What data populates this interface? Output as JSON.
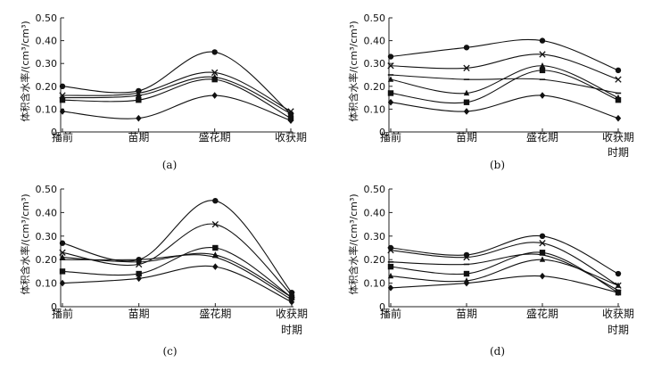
{
  "figure": {
    "ylabel": "体积含水率/(cm³/cm³)",
    "xlabel": "时期"
  },
  "chart_data": [
    {
      "type": "line",
      "panel_label": "(a)",
      "categories": [
        "播前",
        "苗期",
        "盛花期",
        "收获期"
      ],
      "ylim": [
        0,
        0.5
      ],
      "yticks": [
        "0",
        "0.10",
        "0.20",
        "0.30",
        "0.40",
        "0.50"
      ],
      "xlabel": "",
      "ylabel": "体积含水率/(cm³/cm³)",
      "series": [
        {
          "marker": "circle",
          "values": [
            0.2,
            0.18,
            0.35,
            0.08
          ]
        },
        {
          "marker": "cross",
          "values": [
            0.16,
            0.17,
            0.26,
            0.09
          ]
        },
        {
          "marker": "triangle",
          "values": [
            0.15,
            0.16,
            0.24,
            0.08
          ]
        },
        {
          "marker": "square",
          "values": [
            0.14,
            0.14,
            0.23,
            0.06
          ]
        },
        {
          "marker": "diamond",
          "values": [
            0.09,
            0.06,
            0.16,
            0.05
          ]
        }
      ]
    },
    {
      "type": "line",
      "panel_label": "(b)",
      "categories": [
        "播前",
        "苗期",
        "盛花期",
        "收获期"
      ],
      "ylim": [
        0,
        0.5
      ],
      "yticks": [
        "0",
        "0.10",
        "0.20",
        "0.30",
        "0.40",
        "0.50"
      ],
      "xlabel": "时期",
      "ylabel": "体积含水率/(cm³/cm³)",
      "series": [
        {
          "marker": "circle",
          "values": [
            0.33,
            0.37,
            0.4,
            0.27
          ]
        },
        {
          "marker": "cross",
          "values": [
            0.29,
            0.28,
            0.34,
            0.23
          ]
        },
        {
          "marker": "triangle",
          "values": [
            0.23,
            0.17,
            0.29,
            0.15
          ]
        },
        {
          "marker": "square",
          "values": [
            0.17,
            0.13,
            0.27,
            0.14
          ]
        },
        {
          "marker": "diamond",
          "values": [
            0.13,
            0.09,
            0.16,
            0.06
          ]
        },
        {
          "marker": "dash",
          "values": [
            0.25,
            0.23,
            0.23,
            0.17
          ]
        }
      ]
    },
    {
      "type": "line",
      "panel_label": "(c)",
      "categories": [
        "播前",
        "苗期",
        "盛花期",
        "收获期"
      ],
      "ylim": [
        0,
        0.5
      ],
      "yticks": [
        "0",
        "0.10",
        "0.20",
        "0.30",
        "0.40",
        "0.50"
      ],
      "xlabel": "时期",
      "ylabel": "体积含水率/(cm³/cm³)",
      "series": [
        {
          "marker": "circle",
          "values": [
            0.27,
            0.2,
            0.45,
            0.06
          ]
        },
        {
          "marker": "cross",
          "values": [
            0.23,
            0.18,
            0.35,
            0.05
          ]
        },
        {
          "marker": "triangle",
          "values": [
            0.21,
            0.19,
            0.22,
            0.04
          ]
        },
        {
          "marker": "square",
          "values": [
            0.15,
            0.14,
            0.25,
            0.04
          ]
        },
        {
          "marker": "diamond",
          "values": [
            0.1,
            0.12,
            0.17,
            0.02
          ]
        },
        {
          "marker": "dash",
          "values": [
            0.2,
            0.2,
            0.21,
            0.03
          ]
        }
      ]
    },
    {
      "type": "line",
      "panel_label": "(d)",
      "categories": [
        "播前",
        "苗期",
        "盛花期",
        "收获期"
      ],
      "ylim": [
        0,
        0.5
      ],
      "yticks": [
        "0",
        "0.10",
        "0.20",
        "0.30",
        "0.40",
        "0.50"
      ],
      "xlabel": "时期",
      "ylabel": "体积含水率/(cm³/cm³)",
      "series": [
        {
          "marker": "circle",
          "values": [
            0.25,
            0.22,
            0.3,
            0.14
          ]
        },
        {
          "marker": "cross",
          "values": [
            0.24,
            0.21,
            0.27,
            0.09
          ]
        },
        {
          "marker": "triangle",
          "values": [
            0.13,
            0.11,
            0.2,
            0.09
          ]
        },
        {
          "marker": "square",
          "values": [
            0.17,
            0.14,
            0.23,
            0.06
          ]
        },
        {
          "marker": "diamond",
          "values": [
            0.08,
            0.1,
            0.13,
            0.06
          ]
        },
        {
          "marker": "dash",
          "values": [
            0.19,
            0.18,
            0.22,
            0.07
          ]
        }
      ]
    }
  ]
}
